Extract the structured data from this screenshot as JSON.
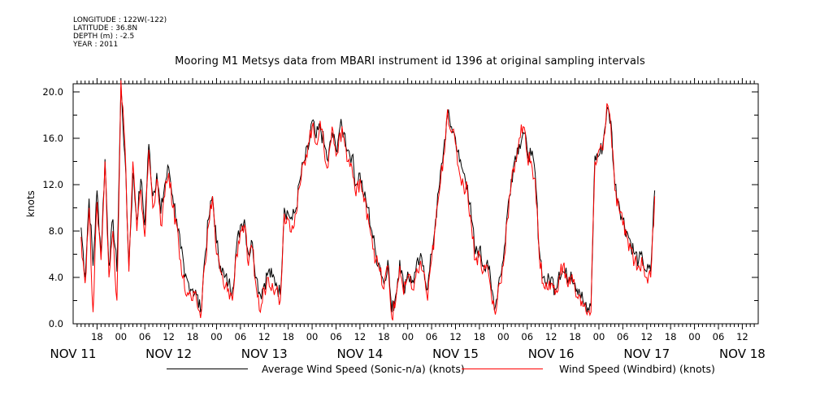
{
  "metadata": {
    "longitude": "LONGITUDE : 122W(-122)",
    "latitude": "LATITUDE : 36.8N",
    "depth": "DEPTH (m) : -2.5",
    "year": "YEAR : 2011"
  },
  "colors": {
    "avg_series": "#000000",
    "windbird_series": "#ff0000"
  },
  "chart_data": {
    "type": "line",
    "title": "Mooring M1 Metsys data from MBARI instrument id 1396 at original sampling intervals",
    "xlabel": "",
    "ylabel": "knots",
    "x_range_hours": [
      2011111112,
      2011111813
    ],
    "x_range_note_unused": "",
    "ylim": [
      0,
      20.7
    ],
    "y_ticks": [
      "0.0",
      "4.0",
      "8.0",
      "12.0",
      "16.0",
      "20.0"
    ],
    "x_hour_ticks": [
      {
        "h": 18,
        "t": "18"
      },
      {
        "h": 24,
        "t": "00"
      },
      {
        "h": 30,
        "t": "06"
      },
      {
        "h": 36,
        "t": "12"
      },
      {
        "h": 42,
        "t": "18"
      },
      {
        "h": 48,
        "t": "00"
      },
      {
        "h": 54,
        "t": "06"
      },
      {
        "h": 60,
        "t": "12"
      },
      {
        "h": 66,
        "t": "18"
      },
      {
        "h": 72,
        "t": "00"
      },
      {
        "h": 78,
        "t": "06"
      },
      {
        "h": 84,
        "t": "12"
      },
      {
        "h": 90,
        "t": "18"
      },
      {
        "h": 96,
        "t": "00"
      },
      {
        "h": 102,
        "t": "06"
      },
      {
        "h": 108,
        "t": "12"
      },
      {
        "h": 114,
        "t": "18"
      },
      {
        "h": 120,
        "t": "00"
      },
      {
        "h": 126,
        "t": "06"
      },
      {
        "h": 132,
        "t": "12"
      },
      {
        "h": 138,
        "t": "18"
      },
      {
        "h": 144,
        "t": "00"
      },
      {
        "h": 150,
        "t": "06"
      },
      {
        "h": 156,
        "t": "12"
      },
      {
        "h": 162,
        "t": "18"
      },
      {
        "h": 168,
        "t": "00"
      },
      {
        "h": 174,
        "t": "06"
      },
      {
        "h": 180,
        "t": "12"
      }
    ],
    "x_day_labels": [
      {
        "h": 12,
        "t": "NOV 11"
      },
      {
        "h": 36,
        "t": "NOV 12"
      },
      {
        "h": 60,
        "t": "NOV 13"
      },
      {
        "h": 84,
        "t": "NOV 14"
      },
      {
        "h": 108,
        "t": "NOV 15"
      },
      {
        "h": 132,
        "t": "NOV 16"
      },
      {
        "h": 156,
        "t": "NOV 17"
      },
      {
        "h": 180,
        "t": "NOV 18"
      }
    ],
    "legend_placement": "bottom",
    "series": [
      {
        "name": "Average Wind Speed (Sonic-n/a) (knots)",
        "x_hours_since_nov11_00": [
          14,
          15,
          16,
          17,
          18,
          19,
          20,
          21,
          22,
          23,
          24,
          25,
          26,
          27,
          28,
          29,
          30,
          31,
          32,
          33,
          34,
          35,
          36,
          37,
          38,
          39,
          40,
          41,
          42,
          43,
          44,
          45,
          46,
          47,
          48,
          49,
          50,
          51,
          52,
          53,
          54,
          55,
          56,
          57,
          58,
          59,
          60,
          61,
          62,
          63,
          64,
          65,
          66,
          67,
          68,
          69,
          70,
          71,
          72,
          73,
          74,
          75,
          76,
          77,
          78,
          79,
          80,
          81,
          82,
          83,
          84,
          85,
          86,
          87,
          88,
          89,
          90,
          91,
          92,
          93,
          94,
          95,
          96,
          97,
          98,
          99,
          100,
          101,
          102,
          103,
          104,
          105,
          106,
          107,
          108,
          109,
          110,
          111,
          112,
          113,
          114,
          115,
          116,
          117,
          118,
          119,
          120,
          121,
          122,
          123,
          124,
          125,
          126,
          127,
          128,
          129,
          130,
          131,
          132,
          133,
          134,
          135,
          136,
          137,
          138,
          139,
          140,
          141,
          142,
          143,
          144,
          145,
          146,
          147,
          148,
          149,
          150,
          151,
          152,
          153,
          154,
          155,
          156,
          157,
          158,
          159,
          160,
          161,
          162,
          163,
          164,
          165,
          166,
          167,
          168,
          169,
          170,
          171,
          172,
          173,
          174,
          175,
          176,
          177,
          178,
          179,
          180,
          181
        ],
        "values": [
          8.3,
          4.0,
          10.8,
          5.0,
          11.5,
          6.0,
          14.2,
          5.0,
          9.0,
          4.5,
          20.4,
          14.5,
          5.0,
          13.0,
          9.0,
          12.5,
          8.5,
          15.5,
          11.0,
          13.0,
          9.5,
          12.0,
          13.5,
          11.0,
          9.0,
          6.5,
          4.0,
          3.5,
          3.0,
          2.5,
          1.0,
          5.5,
          9.0,
          11.0,
          7.0,
          5.0,
          4.0,
          3.5,
          3.0,
          6.5,
          8.5,
          9.0,
          6.0,
          7.0,
          4.0,
          2.5,
          3.5,
          4.5,
          4.0,
          3.5,
          2.5,
          10.0,
          9.5,
          9.0,
          10.0,
          12.5,
          14.0,
          15.0,
          17.5,
          16.0,
          17.0,
          15.5,
          14.0,
          16.5,
          15.0,
          17.0,
          16.5,
          15.0,
          14.5,
          12.0,
          13.0,
          11.0,
          10.0,
          8.0,
          6.0,
          5.0,
          3.5,
          5.5,
          1.0,
          2.5,
          5.5,
          3.0,
          4.5,
          3.5,
          4.5,
          5.5,
          5.0,
          3.0,
          6.0,
          9.0,
          12.0,
          15.0,
          18.0,
          17.0,
          16.0,
          14.0,
          13.0,
          12.0,
          9.0,
          6.0,
          6.5,
          5.0,
          5.5,
          3.0,
          1.5,
          4.0,
          5.5,
          9.5,
          12.5,
          14.5,
          15.5,
          16.5,
          15.0,
          14.5,
          13.0,
          6.5,
          4.0,
          3.5,
          4.0,
          3.0,
          4.5,
          4.5,
          4.0,
          4.5,
          3.5,
          3.0,
          2.0,
          1.0,
          1.5,
          14.5,
          14.5,
          15.5,
          18.5,
          17.5,
          12.0,
          10.5,
          9.0,
          8.0,
          7.0,
          6.0,
          5.5,
          5.5,
          4.5,
          4.5,
          11.5
        ]
      },
      {
        "name": "Wind Speed (Windbird) (knots)",
        "x_hours_since_nov11_00": [
          14,
          15,
          16,
          17,
          18,
          19,
          20,
          21,
          22,
          23,
          24,
          25,
          26,
          27,
          28,
          29,
          30,
          31,
          32,
          33,
          34,
          35,
          36,
          37,
          38,
          39,
          40,
          41,
          42,
          43,
          44,
          45,
          46,
          47,
          48,
          49,
          50,
          51,
          52,
          53,
          54,
          55,
          56,
          57,
          58,
          59,
          60,
          61,
          62,
          63,
          64,
          65,
          66,
          67,
          68,
          69,
          70,
          71,
          72,
          73,
          74,
          75,
          76,
          77,
          78,
          79,
          80,
          81,
          82,
          83,
          84,
          85,
          86,
          87,
          88,
          89,
          90,
          91,
          92,
          93,
          94,
          95,
          96,
          97,
          98,
          99,
          100,
          101,
          102,
          103,
          104,
          105,
          106,
          107,
          108,
          109,
          110,
          111,
          112,
          113,
          114,
          115,
          116,
          117,
          118,
          119,
          120,
          121,
          122,
          123,
          124,
          125,
          126,
          127,
          128,
          129,
          130,
          131,
          132,
          133,
          134,
          135,
          136,
          137,
          138,
          139,
          140,
          141,
          142,
          143,
          144,
          145,
          146,
          147,
          148,
          149,
          150,
          151,
          152,
          153,
          154,
          155,
          156,
          157,
          158,
          159,
          160,
          161,
          162,
          163,
          164,
          165,
          166,
          167,
          168,
          169,
          170,
          171,
          172,
          173,
          174,
          175,
          176,
          177,
          178,
          179,
          180,
          181
        ],
        "values": [
          7.5,
          3.5,
          10.0,
          1.0,
          10.5,
          5.5,
          14.0,
          4.0,
          8.0,
          2.0,
          21.0,
          15.5,
          4.5,
          14.0,
          8.0,
          11.5,
          7.5,
          15.0,
          10.0,
          12.5,
          8.5,
          11.0,
          13.0,
          10.0,
          8.5,
          5.5,
          3.0,
          2.5,
          2.0,
          2.0,
          0.5,
          5.0,
          8.5,
          11.0,
          6.0,
          4.5,
          3.0,
          3.0,
          2.0,
          6.0,
          8.0,
          8.5,
          5.0,
          6.5,
          3.0,
          1.0,
          3.0,
          4.0,
          3.5,
          3.0,
          2.0,
          9.5,
          9.0,
          8.5,
          9.5,
          12.0,
          14.0,
          15.5,
          17.0,
          15.5,
          17.5,
          15.0,
          13.5,
          17.0,
          14.5,
          16.5,
          16.0,
          14.0,
          13.5,
          11.0,
          12.5,
          10.5,
          9.5,
          7.5,
          5.5,
          4.5,
          3.0,
          5.0,
          0.5,
          2.0,
          5.0,
          2.5,
          4.0,
          3.0,
          4.0,
          5.0,
          4.5,
          2.0,
          5.5,
          8.5,
          11.5,
          14.5,
          18.5,
          16.5,
          15.5,
          13.0,
          12.0,
          11.5,
          8.5,
          5.5,
          6.0,
          4.5,
          5.0,
          2.5,
          0.8,
          3.5,
          5.0,
          9.0,
          12.0,
          14.0,
          16.0,
          17.0,
          14.5,
          14.0,
          12.5,
          6.0,
          3.5,
          3.0,
          3.5,
          2.5,
          4.0,
          5.0,
          3.5,
          4.0,
          3.0,
          2.5,
          1.5,
          0.8,
          1.0,
          14.0,
          15.0,
          15.0,
          19.0,
          17.0,
          11.5,
          10.0,
          8.5,
          7.5,
          6.5,
          5.5,
          5.0,
          5.0,
          4.0,
          4.0,
          11.0
        ]
      }
    ]
  },
  "legend": {
    "avg_label": "Average Wind Speed (Sonic-n/a) (knots)",
    "windbird_label": "Wind Speed (Windbird) (knots)"
  }
}
